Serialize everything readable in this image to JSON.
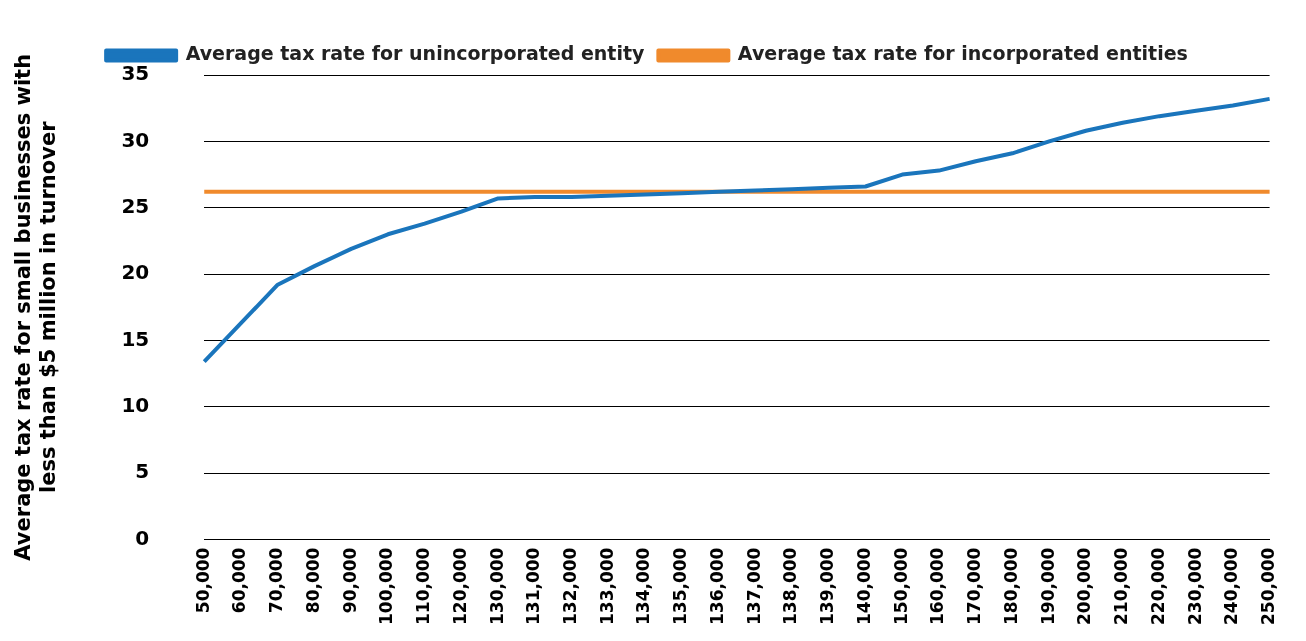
{
  "chart_data": {
    "type": "line",
    "ylabel": "Average tax rate for small businesses with less than $5 million in turnover",
    "categories": [
      "50,000",
      "60,000",
      "70,000",
      "80,000",
      "90,000",
      "100,000",
      "110,000",
      "120,000",
      "130,000",
      "131,000",
      "132,000",
      "133,000",
      "134,000",
      "135,000",
      "136,000",
      "137,000",
      "138,000",
      "139,000",
      "140,000",
      "150,000",
      "160,000",
      "170,000",
      "180,000",
      "190,000",
      "200,000",
      "210,000",
      "220,000",
      "230,000",
      "240,000",
      "250,000"
    ],
    "series": [
      {
        "name": "Average tax rate for incorporated entities",
        "color": "#f08a2c",
        "values": [
          26.2,
          26.2,
          26.2,
          26.2,
          26.2,
          26.2,
          26.2,
          26.2,
          26.2,
          26.2,
          26.2,
          26.2,
          26.2,
          26.2,
          26.2,
          26.2,
          26.2,
          26.2,
          26.2,
          26.2,
          26.2,
          26.2,
          26.2,
          26.2,
          26.2,
          26.2,
          26.2,
          26.2,
          26.2,
          26.2
        ]
      },
      {
        "name": "Average tax rate for unincorporated entity",
        "color": "#1a75bc",
        "values": [
          13.4,
          16.3,
          19.2,
          20.6,
          21.9,
          23.0,
          23.8,
          24.7,
          25.7,
          25.8,
          25.8,
          25.9,
          26.0,
          26.1,
          26.2,
          26.3,
          26.4,
          26.5,
          26.6,
          27.5,
          27.8,
          28.5,
          29.1,
          30.0,
          30.8,
          31.4,
          31.9,
          32.3,
          32.7,
          33.2
        ]
      }
    ],
    "ylim": [
      0,
      35
    ],
    "yticks": [
      0,
      5,
      10,
      15,
      20,
      25,
      30,
      35
    ],
    "grid": "y",
    "legend": "top",
    "marker": "none",
    "line_style": "solid"
  }
}
